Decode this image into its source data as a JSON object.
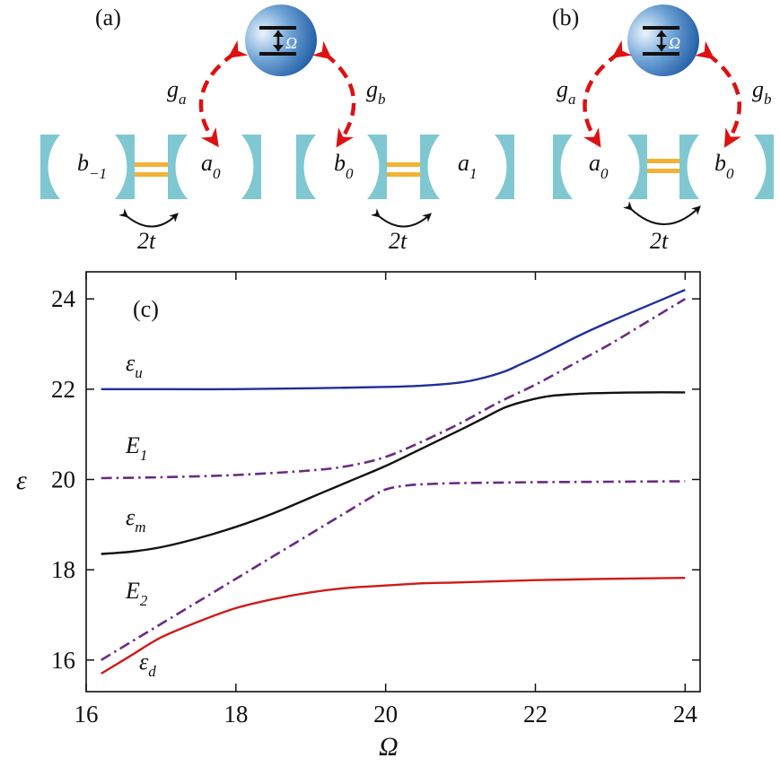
{
  "panels": {
    "a": {
      "label": "(a)",
      "atom_label": "Ω",
      "coupling_left": {
        "symbol": "g",
        "sub": "a"
      },
      "coupling_right": {
        "symbol": "g",
        "sub": "b"
      },
      "cavities": [
        {
          "symbol": "b",
          "sub": "−1"
        },
        {
          "symbol": "a",
          "sub": "0"
        },
        {
          "symbol": "b",
          "sub": "0"
        },
        {
          "symbol": "a",
          "sub": "1"
        }
      ],
      "hopping_left": "2t",
      "hopping_right": "2t"
    },
    "b": {
      "label": "(b)",
      "atom_label": "Ω",
      "coupling_left": {
        "symbol": "g",
        "sub": "a"
      },
      "coupling_right": {
        "symbol": "g",
        "sub": "b"
      },
      "cavities": [
        {
          "symbol": "a",
          "sub": "0"
        },
        {
          "symbol": "b",
          "sub": "0"
        }
      ],
      "hopping": "2t"
    }
  },
  "colors": {
    "cavity": "#7fc8d2",
    "waveguide": "#f2b233",
    "arrow": "#dd1111",
    "atom_light": "#d8ecfa",
    "atom_dark": "#1a5aa8",
    "eps_u": "#1f2f9a",
    "eps_m": "#111111",
    "eps_d": "#d01a1a",
    "E_lines": "#6b2a82"
  },
  "chart_data": {
    "type": "line",
    "panel_label": "(c)",
    "xlabel": "Ω",
    "ylabel": "ε",
    "xlim": [
      16,
      24.2
    ],
    "ylim": [
      15.3,
      24.6
    ],
    "xticks": [
      16,
      18,
      20,
      22,
      24
    ],
    "yticks": [
      16,
      18,
      20,
      22,
      24
    ],
    "grid": false,
    "series": [
      {
        "name": "ε_u",
        "label_symbol": "ε",
        "label_sub": "u",
        "style": "solid",
        "x": [
          16.2,
          17.0,
          18.0,
          19.0,
          20.0,
          20.5,
          21.0,
          21.3,
          21.6,
          21.8,
          22.0,
          22.3,
          22.6,
          23.0,
          23.5,
          24.0
        ],
        "y": [
          22.0,
          22.0,
          22.0,
          22.02,
          22.05,
          22.08,
          22.15,
          22.25,
          22.4,
          22.55,
          22.7,
          22.95,
          23.2,
          23.5,
          23.85,
          24.2
        ]
      },
      {
        "name": "ε_m",
        "label_symbol": "ε",
        "label_sub": "m",
        "style": "solid",
        "x": [
          16.2,
          16.6,
          17.0,
          17.5,
          18.0,
          18.5,
          19.0,
          19.5,
          20.0,
          20.5,
          21.0,
          21.3,
          21.6,
          21.9,
          22.2,
          22.6,
          23.0,
          23.5,
          24.0
        ],
        "y": [
          18.35,
          18.4,
          18.5,
          18.7,
          18.95,
          19.25,
          19.6,
          19.95,
          20.3,
          20.7,
          21.1,
          21.35,
          21.6,
          21.75,
          21.85,
          21.9,
          21.92,
          21.93,
          21.93
        ]
      },
      {
        "name": "ε_d",
        "label_symbol": "ε",
        "label_sub": "d",
        "style": "solid",
        "x": [
          16.2,
          16.6,
          17.0,
          17.5,
          18.0,
          18.5,
          19.0,
          19.5,
          20.0,
          20.5,
          21.0,
          22.0,
          23.0,
          24.0
        ],
        "y": [
          15.7,
          16.1,
          16.5,
          16.85,
          17.15,
          17.35,
          17.5,
          17.6,
          17.65,
          17.7,
          17.72,
          17.77,
          17.8,
          17.82
        ]
      },
      {
        "name": "E_1",
        "label_symbol": "E",
        "label_sub": "1",
        "style": "dashdot",
        "x": [
          16.2,
          17.0,
          18.0,
          19.0,
          19.5,
          20.0,
          20.5,
          21.0,
          21.5,
          22.0,
          22.5,
          23.0,
          23.5,
          24.0
        ],
        "y": [
          20.03,
          20.05,
          20.1,
          20.2,
          20.3,
          20.5,
          20.85,
          21.25,
          21.7,
          22.1,
          22.55,
          23.0,
          23.5,
          24.0
        ]
      },
      {
        "name": "E_2",
        "label_symbol": "E",
        "label_sub": "2",
        "style": "dashdot",
        "x": [
          16.2,
          16.6,
          17.0,
          17.5,
          18.0,
          18.5,
          19.0,
          19.5,
          19.8,
          20.0,
          20.3,
          20.6,
          21.0,
          22.0,
          23.0,
          24.0
        ],
        "y": [
          16.0,
          16.4,
          16.8,
          17.3,
          17.8,
          18.3,
          18.8,
          19.3,
          19.6,
          19.78,
          19.87,
          19.9,
          19.92,
          19.94,
          19.95,
          19.96
        ]
      }
    ]
  }
}
